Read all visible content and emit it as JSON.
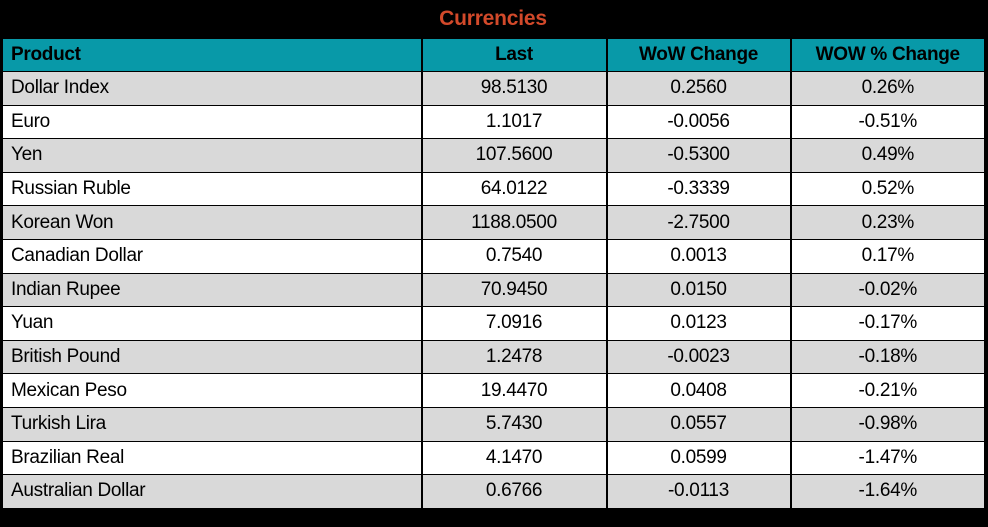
{
  "title": "Currencies",
  "colors": {
    "title_bg": "#000000",
    "title_text": "#D2492A",
    "header_bg": "#0899A8",
    "header_text": "#000000",
    "row_alt_bg": "#D9D9D9",
    "row_bg": "#FFFFFF",
    "grid_border": "#000000"
  },
  "chart_data": {
    "type": "table",
    "title": "Currencies",
    "columns": [
      "Product",
      "Last",
      "WoW Change",
      "WOW % Change"
    ],
    "rows": [
      [
        "Dollar Index",
        "98.5130",
        "0.2560",
        "0.26%"
      ],
      [
        "Euro",
        "1.1017",
        "-0.0056",
        "-0.51%"
      ],
      [
        "Yen",
        "107.5600",
        "-0.5300",
        "0.49%"
      ],
      [
        "Russian Ruble",
        "64.0122",
        "-0.3339",
        "0.52%"
      ],
      [
        "Korean Won",
        "1188.0500",
        "-2.7500",
        "0.23%"
      ],
      [
        "Canadian Dollar",
        "0.7540",
        "0.0013",
        "0.17%"
      ],
      [
        "Indian Rupee",
        "70.9450",
        "0.0150",
        "-0.02%"
      ],
      [
        "Yuan",
        "7.0916",
        "0.0123",
        "-0.17%"
      ],
      [
        "British Pound",
        "1.2478",
        "-0.0023",
        "-0.18%"
      ],
      [
        "Mexican Peso",
        "19.4470",
        "0.0408",
        "-0.21%"
      ],
      [
        "Turkish Lira",
        "5.7430",
        "0.0557",
        "-0.98%"
      ],
      [
        "Brazilian Real",
        "4.1470",
        "0.0599",
        "-1.47%"
      ],
      [
        "Australian Dollar",
        "0.6766",
        "-0.0113",
        "-1.64%"
      ]
    ]
  }
}
